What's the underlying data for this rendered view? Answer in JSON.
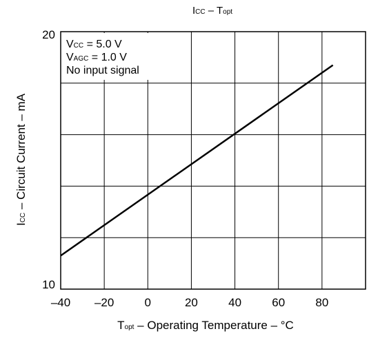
{
  "chart_data": {
    "type": "line",
    "title": {
      "main": "I",
      "main_sub": "CC",
      "dash": " – T",
      "dash_sub": "opt"
    },
    "xlabel": {
      "main": "T",
      "sub": "opt",
      "rest": " – Operating Temperature – °C"
    },
    "ylabel": {
      "main": "I",
      "sub": "CC",
      "rest": " – Circuit Current – mA"
    },
    "xlim": [
      -40,
      100
    ],
    "ylim": [
      10,
      20
    ],
    "xticks": [
      -40,
      -20,
      0,
      20,
      40,
      60,
      80,
      100
    ],
    "xtick_labels": [
      "–40",
      "–20",
      "0",
      "20",
      "40",
      "60",
      "80"
    ],
    "yticks": [
      10,
      12,
      14,
      16,
      18,
      20
    ],
    "ytick_labels": {
      "min": "10",
      "max": "20"
    },
    "grid": true,
    "annotations": [
      {
        "main": "V",
        "sub": "CC",
        "rest": " = 5.0 V"
      },
      {
        "main": "V",
        "sub": "AGC",
        "rest": " = 1.0 V"
      },
      {
        "main": "No input signal",
        "sub": "",
        "rest": ""
      }
    ],
    "series": [
      {
        "x": [
          -40,
          85
        ],
        "y": [
          11.3,
          18.7
        ],
        "color": "#000000"
      }
    ]
  }
}
